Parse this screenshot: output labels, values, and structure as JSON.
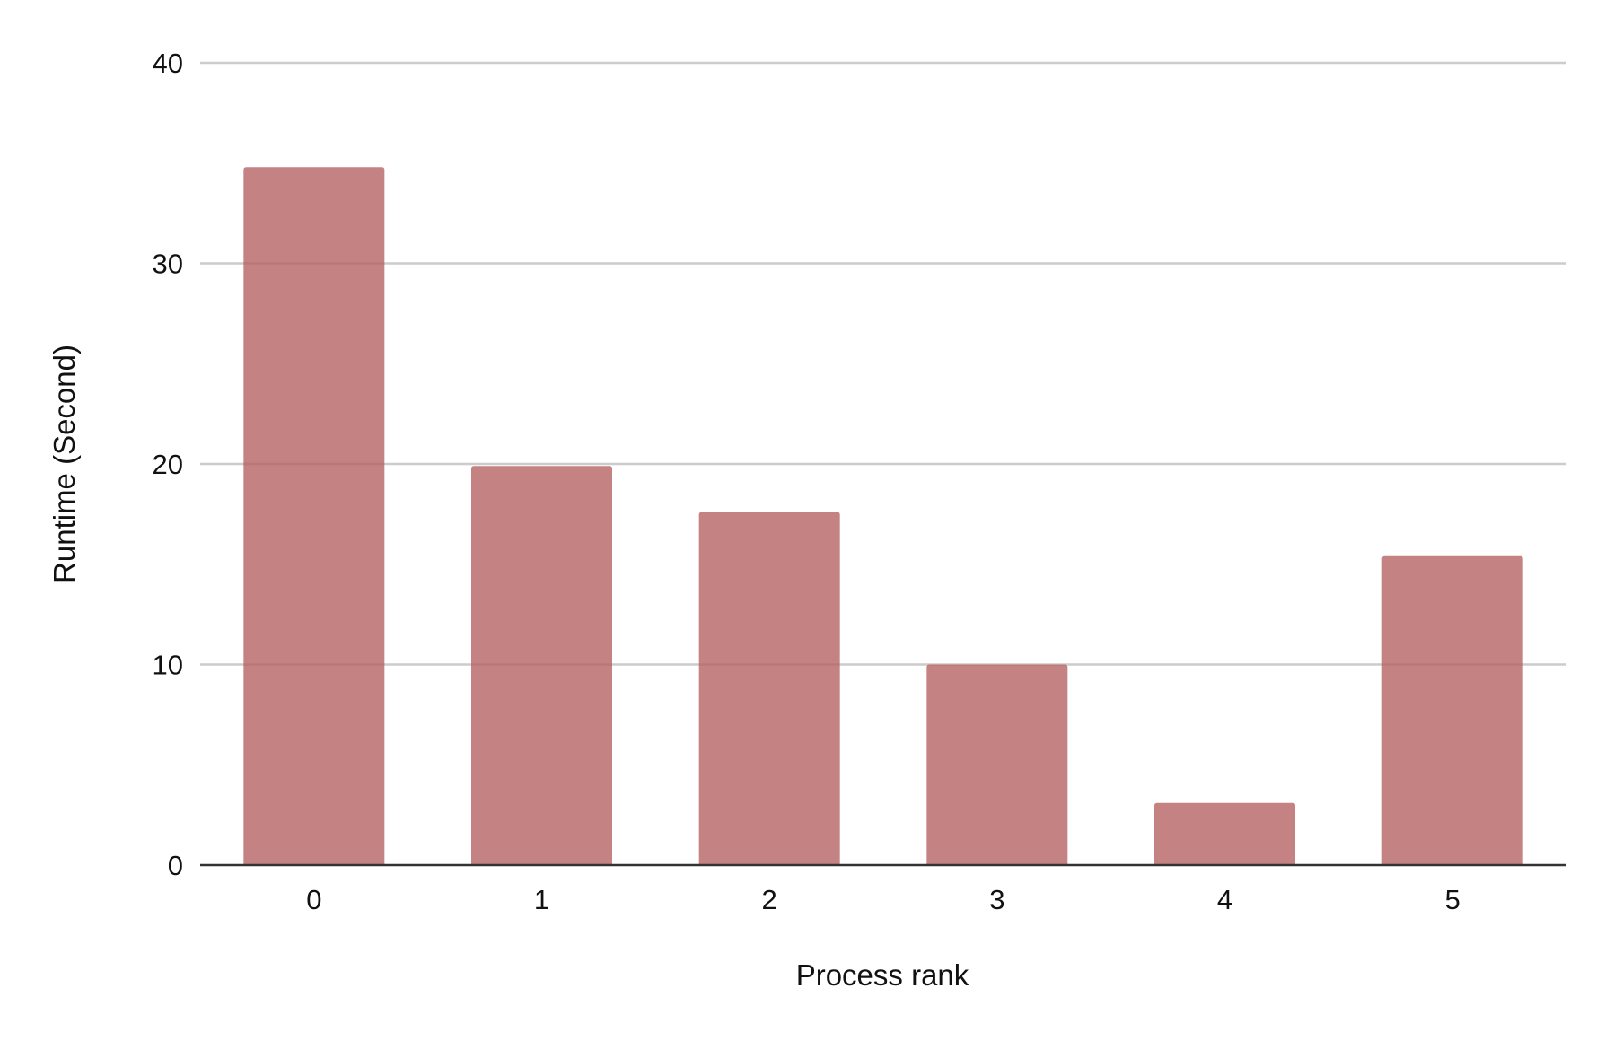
{
  "chart_data": {
    "type": "bar",
    "title": "",
    "xlabel": "Process rank",
    "ylabel": "Runtime (Second)",
    "categories": [
      "0",
      "1",
      "2",
      "3",
      "4",
      "5"
    ],
    "values": [
      34.8,
      19.9,
      17.6,
      10.0,
      3.1,
      15.4
    ],
    "ylim": [
      0,
      40
    ],
    "yticks": [
      "0",
      "10",
      "20",
      "30",
      "40"
    ],
    "grid": true,
    "legend": "none",
    "colors": {
      "bar": "#b35f5f",
      "bar_opacity": 0.78,
      "gridline": "#cccccc",
      "baseline": "#333333"
    }
  }
}
